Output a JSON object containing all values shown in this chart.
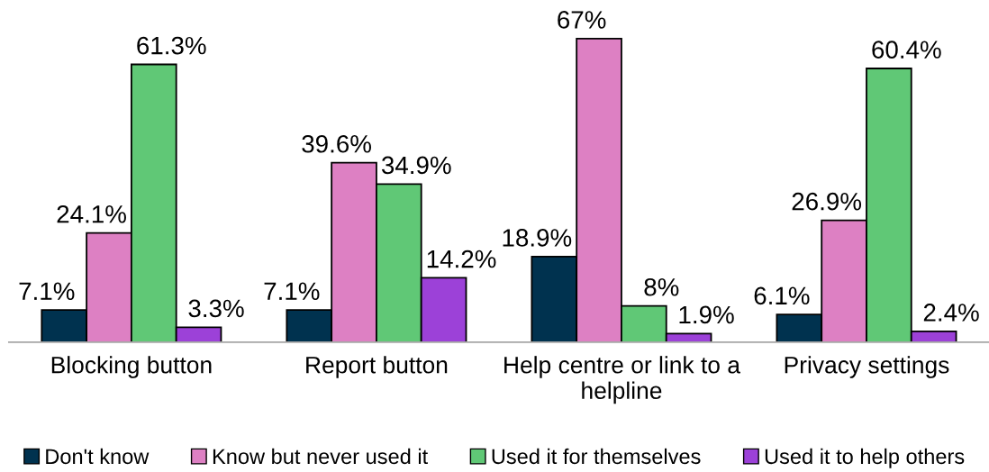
{
  "chart_data": {
    "type": "bar",
    "categories": [
      "Blocking button",
      "Report button",
      "Help centre or link to a\nhelpline",
      "Privacy settings"
    ],
    "series": [
      {
        "name": "Don't know",
        "color": "#00324f",
        "values": [
          7.1,
          7.1,
          18.9,
          6.1
        ],
        "value_labels": [
          "7.1%",
          "7.1%",
          "18.9%",
          "6.1%"
        ]
      },
      {
        "name": "Know but never used it",
        "color": "#dd80c3",
        "values": [
          24.1,
          39.6,
          67,
          26.9
        ],
        "value_labels": [
          "24.1%",
          "39.6%",
          "67%",
          "26.9%"
        ]
      },
      {
        "name": "Used it for themselves",
        "color": "#60c876",
        "values": [
          61.3,
          34.9,
          8,
          60.4
        ],
        "value_labels": [
          "61.3%",
          "34.9%",
          "8%",
          "60.4%"
        ]
      },
      {
        "name": "Used it to help others",
        "color": "#9c41d8",
        "values": [
          3.3,
          14.2,
          1.9,
          2.4
        ],
        "value_labels": [
          "3.3%",
          "14.2%",
          "1.9%",
          "2.4%"
        ]
      }
    ],
    "legend": "bottom",
    "tick_labels": "x"
  }
}
